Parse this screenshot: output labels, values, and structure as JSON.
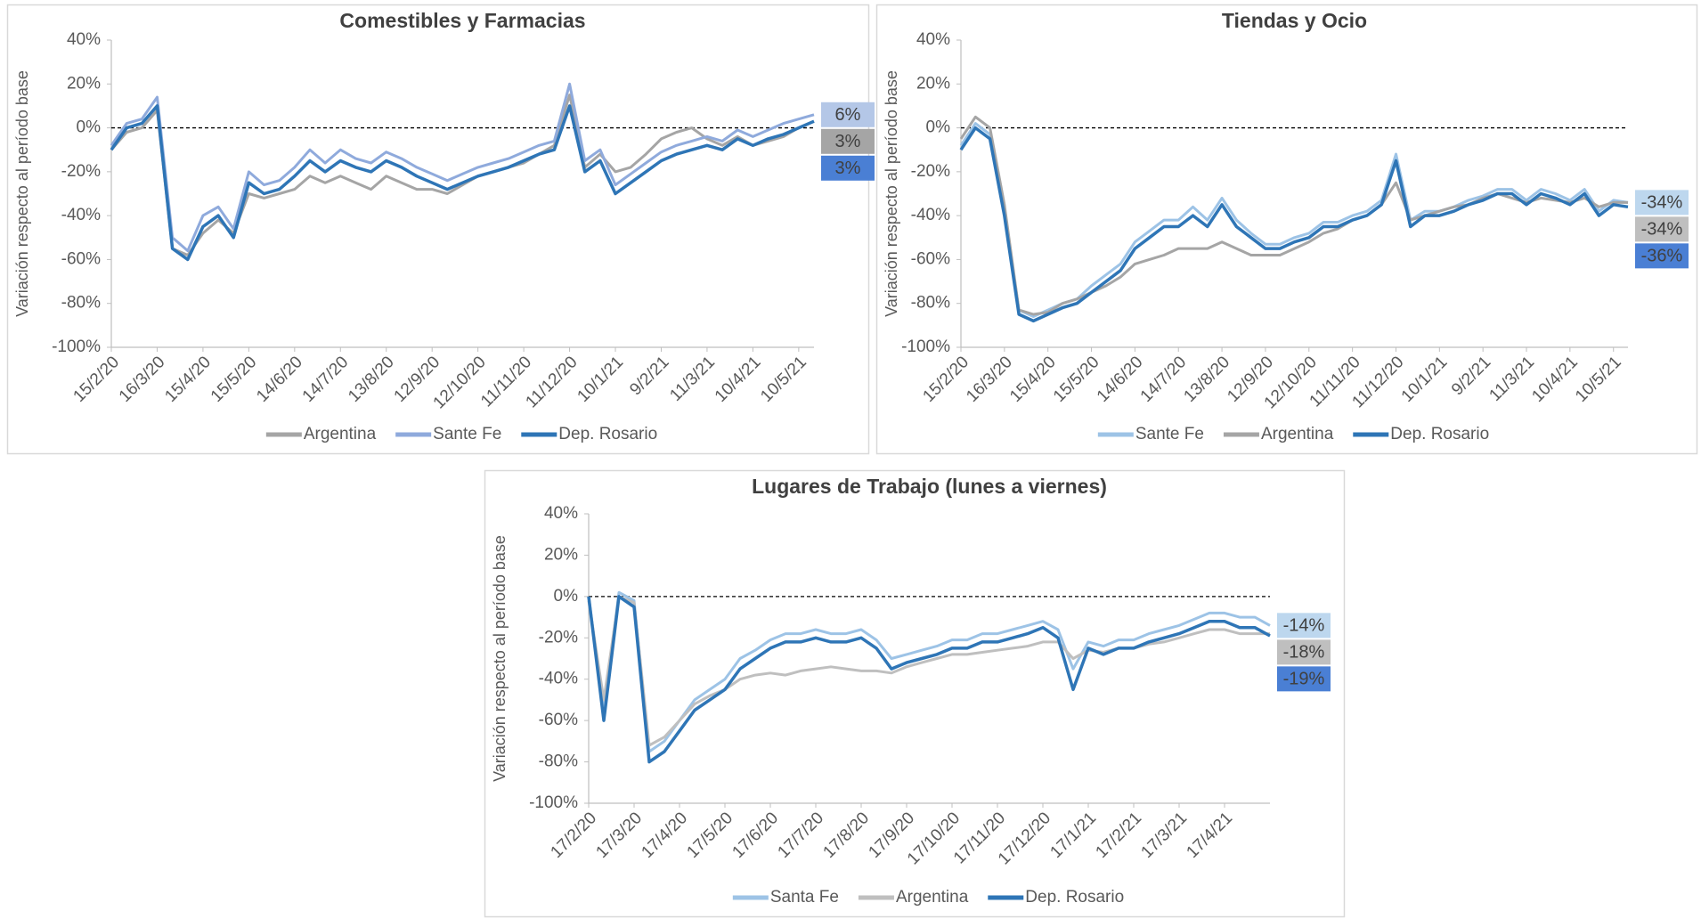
{
  "chart_data": [
    {
      "type": "line",
      "title": "Comestibles y Farmacias",
      "y_label": "Variación respecto al período base",
      "categories": [
        "15/2/20",
        null,
        null,
        "16/3/20",
        null,
        null,
        "15/4/20",
        null,
        null,
        "15/5/20",
        null,
        null,
        "14/6/20",
        null,
        null,
        "14/7/20",
        null,
        null,
        "13/8/20",
        null,
        null,
        "12/9/20",
        null,
        null,
        "12/10/20",
        null,
        null,
        "11/11/20",
        null,
        null,
        "11/12/20",
        null,
        null,
        "10/1/21",
        null,
        null,
        "9/2/21",
        null,
        null,
        "11/3/21",
        null,
        null,
        "10/4/21",
        null,
        null,
        "10/5/21",
        null
      ],
      "ylim": [
        -100,
        40
      ],
      "yticks": [
        {
          "value": -100,
          "label": "-100%"
        },
        {
          "value": -80,
          "label": "-80%"
        },
        {
          "value": -60,
          "label": "-60%"
        },
        {
          "value": -40,
          "label": "-40%"
        },
        {
          "value": -20,
          "label": "-20%"
        },
        {
          "value": 0,
          "label": "0%"
        },
        {
          "value": 20,
          "label": "20%"
        },
        {
          "value": 40,
          "label": "40%"
        }
      ],
      "reference_line": 0,
      "legend": "bottom",
      "series": [
        {
          "name": "Argentina",
          "color": "#a5a5a5",
          "label_color": "#a5a5a5",
          "width": 3,
          "end_label": "3%",
          "values": [
            -10,
            -2,
            0,
            8,
            -55,
            -58,
            -48,
            -42,
            -48,
            -30,
            -32,
            -30,
            -28,
            -22,
            -25,
            -22,
            -25,
            -28,
            -22,
            -25,
            -28,
            -28,
            -30,
            -26,
            -22,
            -20,
            -18,
            -16,
            -12,
            -8,
            15,
            -18,
            -12,
            -20,
            -18,
            -12,
            -5,
            -2,
            0,
            -5,
            -8,
            -4,
            -8,
            -6,
            -4,
            0,
            3
          ]
        },
        {
          "name": "Sante Fe",
          "color": "#8faadc",
          "label_color": "#b4c7e7",
          "width": 3,
          "end_label": "6%",
          "values": [
            -8,
            2,
            4,
            14,
            -50,
            -56,
            -40,
            -36,
            -46,
            -20,
            -26,
            -24,
            -18,
            -10,
            -16,
            -10,
            -14,
            -16,
            -11,
            -14,
            -18,
            -21,
            -24,
            -21,
            -18,
            -16,
            -14,
            -11,
            -8,
            -6,
            20,
            -15,
            -10,
            -26,
            -21,
            -16,
            -11,
            -8,
            -6,
            -4,
            -6,
            -1,
            -4,
            -1,
            2,
            4,
            6
          ]
        },
        {
          "name": "Dep. Rosario",
          "color": "#2e75b6",
          "label_color": "#4a7fd4",
          "width": 3.5,
          "end_label": "3%",
          "values": [
            -10,
            0,
            2,
            10,
            -55,
            -60,
            -45,
            -40,
            -50,
            -25,
            -30,
            -28,
            -22,
            -15,
            -20,
            -15,
            -18,
            -20,
            -15,
            -18,
            -22,
            -25,
            -28,
            -25,
            -22,
            -20,
            -18,
            -15,
            -12,
            -10,
            10,
            -20,
            -15,
            -30,
            -25,
            -20,
            -15,
            -12,
            -10,
            -8,
            -10,
            -5,
            -8,
            -5,
            -3,
            0,
            3
          ]
        }
      ]
    },
    {
      "type": "line",
      "title": "Tiendas y Ocio",
      "y_label": "Variación respecto al período base",
      "categories": [
        "15/2/20",
        null,
        null,
        "16/3/20",
        null,
        null,
        "15/4/20",
        null,
        null,
        "15/5/20",
        null,
        null,
        "14/6/20",
        null,
        null,
        "14/7/20",
        null,
        null,
        "13/8/20",
        null,
        null,
        "12/9/20",
        null,
        null,
        "12/10/20",
        null,
        null,
        "11/11/20",
        null,
        null,
        "11/12/20",
        null,
        null,
        "10/1/21",
        null,
        null,
        "9/2/21",
        null,
        null,
        "11/3/21",
        null,
        null,
        "10/4/21",
        null,
        null,
        "10/5/21",
        null
      ],
      "ylim": [
        -100,
        40
      ],
      "yticks": [
        {
          "value": -100,
          "label": "-100%"
        },
        {
          "value": -80,
          "label": "-80%"
        },
        {
          "value": -60,
          "label": "-60%"
        },
        {
          "value": -40,
          "label": "-40%"
        },
        {
          "value": -20,
          "label": "-20%"
        },
        {
          "value": 0,
          "label": "0%"
        },
        {
          "value": 20,
          "label": "20%"
        },
        {
          "value": 40,
          "label": "40%"
        }
      ],
      "reference_line": 0,
      "legend": "bottom",
      "series": [
        {
          "name": "Sante Fe",
          "color": "#9dc3e6",
          "label_color": "#bdd7ee",
          "width": 3,
          "end_label": "-34%",
          "values": [
            -8,
            2,
            -3,
            -38,
            -83,
            -86,
            -83,
            -80,
            -78,
            -72,
            -67,
            -62,
            -52,
            -47,
            -42,
            -42,
            -36,
            -42,
            -32,
            -42,
            -48,
            -53,
            -53,
            -50,
            -48,
            -43,
            -43,
            -40,
            -38,
            -33,
            -12,
            -42,
            -38,
            -38,
            -36,
            -33,
            -31,
            -28,
            -28,
            -33,
            -28,
            -30,
            -33,
            -28,
            -38,
            -33,
            -34
          ]
        },
        {
          "name": "Argentina",
          "color": "#a5a5a5",
          "label_color": "#bfbfbf",
          "width": 3,
          "end_label": "-34%",
          "values": [
            -5,
            5,
            0,
            -35,
            -83,
            -85,
            -84,
            -80,
            -78,
            -75,
            -72,
            -68,
            -62,
            -60,
            -58,
            -55,
            -55,
            -55,
            -52,
            -55,
            -58,
            -58,
            -58,
            -55,
            -52,
            -48,
            -46,
            -42,
            -40,
            -35,
            -25,
            -42,
            -40,
            -38,
            -36,
            -35,
            -32,
            -30,
            -32,
            -34,
            -32,
            -33,
            -34,
            -32,
            -36,
            -34,
            -34
          ]
        },
        {
          "name": "Dep. Rosario",
          "color": "#2e75b6",
          "label_color": "#4a7fd4",
          "width": 3.5,
          "end_label": "-36%",
          "values": [
            -10,
            0,
            -5,
            -40,
            -85,
            -88,
            -85,
            -82,
            -80,
            -75,
            -70,
            -65,
            -55,
            -50,
            -45,
            -45,
            -40,
            -45,
            -35,
            -45,
            -50,
            -55,
            -55,
            -52,
            -50,
            -45,
            -45,
            -42,
            -40,
            -35,
            -15,
            -45,
            -40,
            -40,
            -38,
            -35,
            -33,
            -30,
            -30,
            -35,
            -30,
            -32,
            -35,
            -30,
            -40,
            -35,
            -36
          ]
        }
      ]
    },
    {
      "type": "line",
      "title": "Lugares de Trabajo (lunes a viernes)",
      "y_label": "Variación respecto al período base",
      "categories": [
        "17/2/20",
        null,
        null,
        "17/3/20",
        null,
        null,
        "17/4/20",
        null,
        null,
        "17/5/20",
        null,
        null,
        "17/6/20",
        null,
        null,
        "17/7/20",
        null,
        null,
        "17/8/20",
        null,
        null,
        "17/9/20",
        null,
        null,
        "17/10/20",
        null,
        null,
        "17/11/20",
        null,
        null,
        "17/12/20",
        null,
        null,
        "17/1/21",
        null,
        null,
        "17/2/21",
        null,
        null,
        "17/3/21",
        null,
        null,
        "17/4/21",
        null,
        null,
        null
      ],
      "ylim": [
        -100,
        40
      ],
      "yticks": [
        {
          "value": -100,
          "label": "-100%"
        },
        {
          "value": -80,
          "label": "-80%"
        },
        {
          "value": -60,
          "label": "-60%"
        },
        {
          "value": -40,
          "label": "-40%"
        },
        {
          "value": -20,
          "label": "-20%"
        },
        {
          "value": 0,
          "label": "0%"
        },
        {
          "value": 20,
          "label": "20%"
        },
        {
          "value": 40,
          "label": "40%"
        }
      ],
      "reference_line": 0,
      "legend": "bottom",
      "series": [
        {
          "name": "Santa Fe",
          "color": "#9dc3e6",
          "label_color": "#bdd7ee",
          "width": 3,
          "end_label": "-14%",
          "values": [
            0,
            -55,
            2,
            -2,
            -75,
            -70,
            -60,
            -50,
            -45,
            -40,
            -30,
            -26,
            -21,
            -18,
            -18,
            -16,
            -18,
            -18,
            -16,
            -21,
            -30,
            -28,
            -26,
            -24,
            -21,
            -21,
            -18,
            -18,
            -16,
            -14,
            -12,
            -16,
            -35,
            -22,
            -24,
            -21,
            -21,
            -18,
            -16,
            -14,
            -11,
            -8,
            -8,
            -10,
            -10,
            -14
          ]
        },
        {
          "name": "Argentina",
          "color": "#bfbfbf",
          "label_color": "#bfbfbf",
          "width": 3,
          "end_label": "-18%",
          "values": [
            -2,
            -50,
            0,
            -3,
            -72,
            -68,
            -60,
            -52,
            -48,
            -45,
            -40,
            -38,
            -37,
            -38,
            -36,
            -35,
            -34,
            -35,
            -36,
            -36,
            -37,
            -34,
            -32,
            -30,
            -28,
            -28,
            -27,
            -26,
            -25,
            -24,
            -22,
            -22,
            -30,
            -26,
            -27,
            -25,
            -25,
            -23,
            -22,
            -20,
            -18,
            -16,
            -16,
            -18,
            -18,
            -18
          ]
        },
        {
          "name": "Dep. Rosario",
          "color": "#2e75b6",
          "label_color": "#4a7fd4",
          "width": 3.5,
          "end_label": "-19%",
          "values": [
            0,
            -60,
            0,
            -5,
            -80,
            -75,
            -65,
            -55,
            -50,
            -45,
            -35,
            -30,
            -25,
            -22,
            -22,
            -20,
            -22,
            -22,
            -20,
            -25,
            -35,
            -32,
            -30,
            -28,
            -25,
            -25,
            -22,
            -22,
            -20,
            -18,
            -15,
            -20,
            -45,
            -25,
            -28,
            -25,
            -25,
            -22,
            -20,
            -18,
            -15,
            -12,
            -12,
            -15,
            -15,
            -19
          ]
        }
      ]
    }
  ]
}
